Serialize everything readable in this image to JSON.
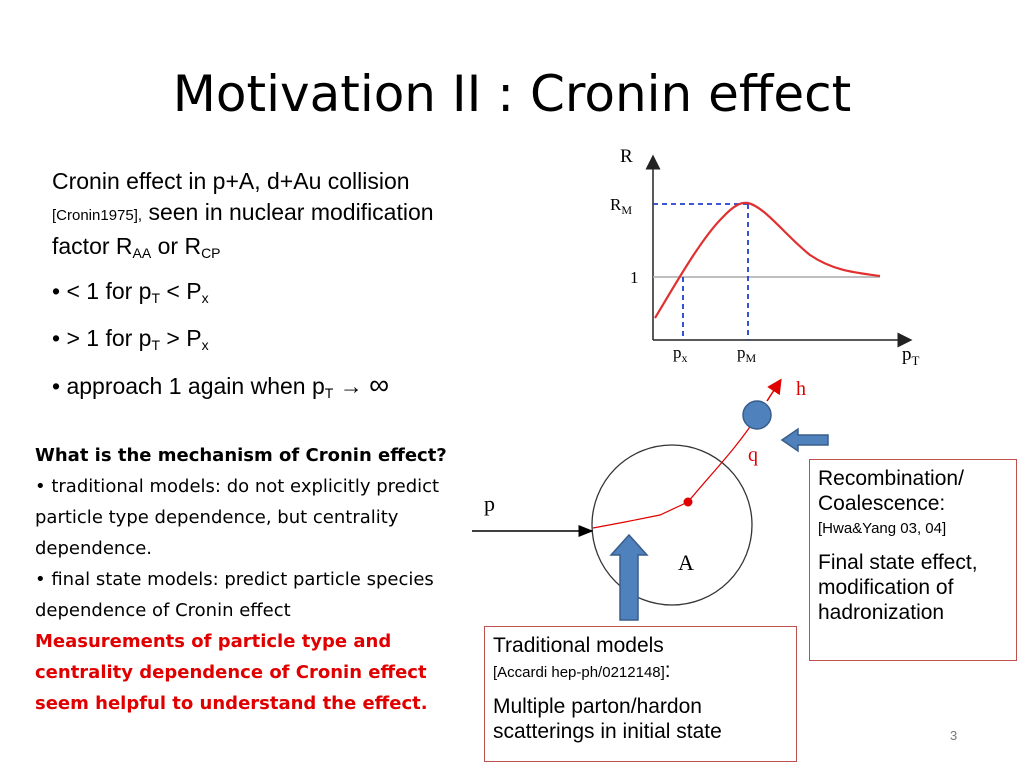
{
  "slide": {
    "title": "Motivation II : Cronin effect",
    "page_number": "3"
  },
  "intro": {
    "line1": "Cronin effect in p+A, d+Au collision",
    "citation": "[Cronin1975],",
    "line2": " seen in nuclear modification",
    "line3_prefix": "factor R",
    "sub_aa": "AA",
    "mid_or": " or R",
    "sub_cp": "CP"
  },
  "bullets": [
    {
      "pre": "• < 1 for p",
      "sub1": "T",
      "mid": " < P",
      "sub2": "x",
      "post": ""
    },
    {
      "pre": "• > 1 for p",
      "sub1": "T",
      "mid": " > P",
      "sub2": "x",
      "post": ""
    },
    {
      "pre": "• approach 1 again when p",
      "sub1": "T",
      "mid": " → ",
      "sub2": "",
      "post": "∞"
    }
  ],
  "mechanism": {
    "question": "What is the mechanism of Cronin effect?",
    "point1": "• traditional models: do not explicitly predict particle type dependence, but centrality dependence.",
    "point2": "• final state models: predict particle species dependence of Cronin effect",
    "conclusion": "Measurements of particle type and centrality dependence of Cronin effect seem helpful to understand the effect."
  },
  "plot": {
    "y_axis_label": "R",
    "y_tick_rm": "R",
    "y_tick_rm_sub": "M",
    "y_tick_one": "1",
    "x_tick_px": "p",
    "x_tick_px_sub": "x",
    "x_tick_pm": "p",
    "x_tick_pm_sub": "M",
    "x_axis_label": "p",
    "x_axis_label_sub": "T",
    "curve_color": "#e03030",
    "dashed_color": "#2040d0"
  },
  "collision": {
    "label_p": "p",
    "label_a": "A",
    "label_q": "q",
    "label_h": "h",
    "arrow_color": "#4f81bd",
    "track_color": "#e00000"
  },
  "box_recombination": {
    "title": "Recombination/ Coalescence:",
    "citation": "[Hwa&Yang 03, 04]",
    "text": "Final state effect, modification of hadronization"
  },
  "box_traditional": {
    "title": "Traditional models",
    "citation": "[Accardi hep-ph/0212148]",
    "colon": ":",
    "text": "Multiple parton/hardon scatterings in initial state"
  }
}
